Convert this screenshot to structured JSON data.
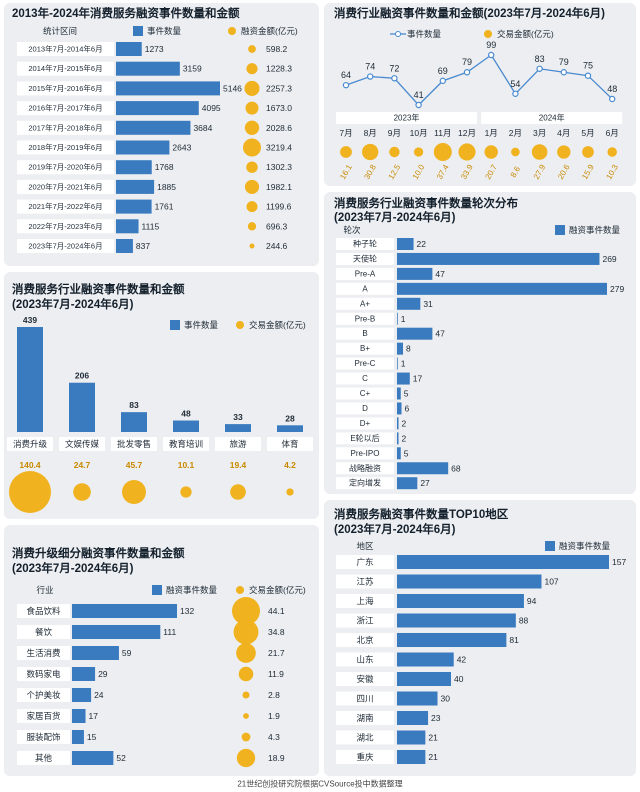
{
  "chart_data": [
    {
      "type": "bar",
      "orientation": "horizontal",
      "title": "2013年-2024年消费服务融资事件数量和金额",
      "category_header": "统计区间",
      "categories": [
        "2013年7月-2014年6月",
        "2014年7月-2015年6月",
        "2015年7月-2016年6月",
        "2016年7月-2017年6月",
        "2017年7月-2018年6月",
        "2018年7月-2019年6月",
        "2019年7月-2020年6月",
        "2020年7月-2021年6月",
        "2021年7月-2022年6月",
        "2022年7月-2023年6月",
        "2023年7月-2024年6月"
      ],
      "series": [
        {
          "name": "事件数量",
          "color": "#3a7bc0",
          "values": [
            1273,
            3159,
            5146,
            4095,
            3684,
            2643,
            1768,
            1885,
            1761,
            1115,
            837
          ]
        },
        {
          "name": "融资金额(亿元)",
          "color": "#f0b21e",
          "marker": "bubble",
          "values": [
            598.2,
            1228.3,
            2257.3,
            1673.0,
            2028.6,
            3219.4,
            1302.3,
            1982.1,
            1199.6,
            696.3,
            244.6
          ],
          "value_labels": [
            "598.2",
            "1228.3",
            "2257.3",
            "1673.0",
            "2028.6",
            "3219.4",
            "1302.3",
            "1982.1",
            "1199.6",
            "696.3",
            "244.6"
          ]
        }
      ]
    },
    {
      "type": "line",
      "title": "消费行业融资事件数量和金额(2023年7月-2024年6月)",
      "period_labels": [
        "2023年",
        "2024年"
      ],
      "categories": [
        "7月",
        "8月",
        "9月",
        "10月",
        "11月",
        "12月",
        "1月",
        "2月",
        "3月",
        "4月",
        "5月",
        "6月"
      ],
      "series": [
        {
          "name": "事件数量",
          "color": "#4a8ad0",
          "values": [
            64,
            74,
            72,
            41,
            69,
            79,
            99,
            54,
            83,
            79,
            75,
            48
          ]
        },
        {
          "name": "交易金额(亿元)",
          "color": "#f0b21e",
          "marker": "bubble",
          "values": [
            16.1,
            30.8,
            12.5,
            10.0,
            37.4,
            33.9,
            20.7,
            8.6,
            27.9,
            20.6,
            15.9,
            10.3
          ],
          "value_labels": [
            "16.1",
            "30.8",
            "12.5",
            "10.0",
            "37.4",
            "33.9",
            "20.7",
            "8.6",
            "27.9",
            "20.6",
            "15.9",
            "10.3"
          ]
        }
      ]
    },
    {
      "type": "bar",
      "orientation": "vertical",
      "title": "消费服务行业融资事件数量和金额",
      "subtitle": "(2023年7月-2024年6月)",
      "categories": [
        "消费升级",
        "文娱传媒",
        "批发零售",
        "教育培训",
        "旅游",
        "体育"
      ],
      "series": [
        {
          "name": "事件数量",
          "color": "#3a7bc0",
          "values": [
            439,
            206,
            83,
            48,
            33,
            28
          ]
        },
        {
          "name": "交易金额(亿元)",
          "color": "#f0b21e",
          "marker": "bubble",
          "values": [
            140.4,
            24.7,
            45.7,
            10.1,
            19.4,
            4.2
          ]
        }
      ]
    },
    {
      "type": "bar",
      "orientation": "horizontal",
      "title": "消费服务行业融资事件数量轮次分布",
      "subtitle": "(2023年7月-2024年6月)",
      "category_header": "轮次",
      "categories": [
        "种子轮",
        "天使轮",
        "Pre-A",
        "A",
        "A+",
        "Pre-B",
        "B",
        "B+",
        "Pre-C",
        "C",
        "C+",
        "D",
        "D+",
        "E轮以后",
        "Pre-IPO",
        "战略融资",
        "定向增发"
      ],
      "series": [
        {
          "name": "融资事件数量",
          "color": "#3a7bc0",
          "values": [
            22,
            269,
            47,
            279,
            31,
            1,
            47,
            8,
            1,
            17,
            5,
            6,
            2,
            2,
            5,
            68,
            27
          ]
        }
      ]
    },
    {
      "type": "bar",
      "orientation": "horizontal",
      "title": "消费升级细分融资事件数量和金额",
      "subtitle": "(2023年7月-2024年6月)",
      "category_header": "行业",
      "categories": [
        "食品饮料",
        "餐饮",
        "生活消费",
        "数码家电",
        "个护美妆",
        "家居百货",
        "服装配饰",
        "其他"
      ],
      "series": [
        {
          "name": "融资事件数量",
          "color": "#3a7bc0",
          "values": [
            132,
            111,
            59,
            29,
            24,
            17,
            15,
            52
          ]
        },
        {
          "name": "交易金额(亿元)",
          "color": "#f0b21e",
          "marker": "bubble",
          "values": [
            44.1,
            34.8,
            21.7,
            11.9,
            2.8,
            1.9,
            4.3,
            18.9
          ]
        }
      ]
    },
    {
      "type": "bar",
      "orientation": "horizontal",
      "title": "消费服务融资事件数量TOP10地区",
      "subtitle": "(2023年7月-2024年6月)",
      "category_header": "地区",
      "categories": [
        "广东",
        "江苏",
        "上海",
        "浙江",
        "北京",
        "山东",
        "安徽",
        "四川",
        "湖南",
        "湖北",
        "重庆"
      ],
      "series": [
        {
          "name": "融资事件数量",
          "color": "#3a7bc0",
          "values": [
            157,
            107,
            94,
            88,
            81,
            42,
            40,
            30,
            23,
            21,
            21
          ]
        }
      ]
    }
  ],
  "footer": "21世纪创投研究院根据CVSource投中数据整理"
}
